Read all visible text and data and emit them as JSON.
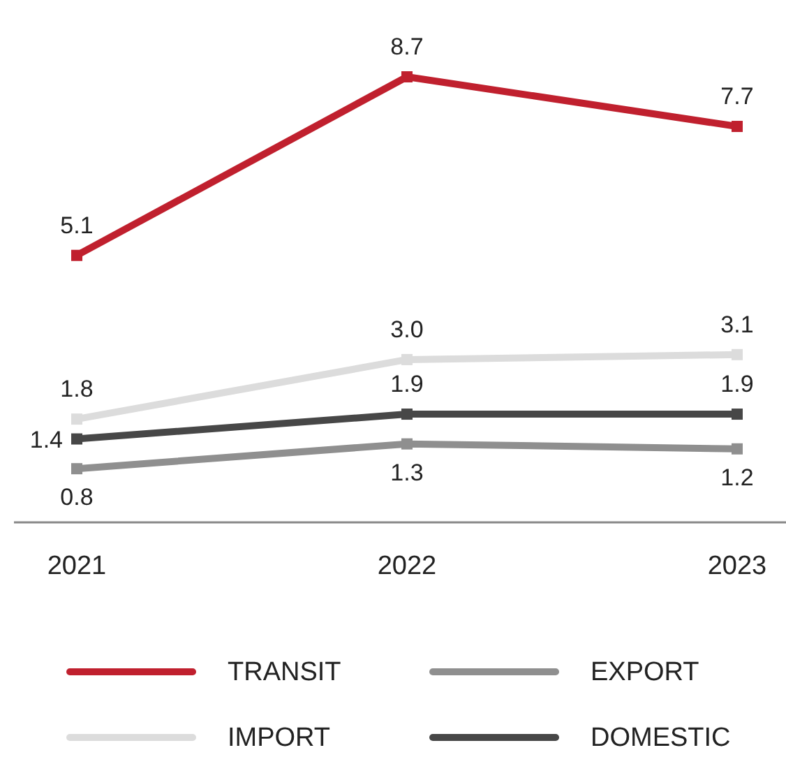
{
  "chart_data": {
    "type": "line",
    "categories": [
      "2021",
      "2022",
      "2023"
    ],
    "marker": "square",
    "legend": "bottom",
    "series": [
      {
        "name": "TRANSIT",
        "color": "#c0202e",
        "values": [
          5.1,
          8.7,
          7.7
        ],
        "value_labels": [
          "5.1",
          "8.7",
          "7.7"
        ]
      },
      {
        "name": "EXPORT",
        "color": "#8f8f8f",
        "values": [
          0.8,
          1.3,
          1.2
        ],
        "value_labels": [
          "0.8",
          "1.3",
          "1.2"
        ]
      },
      {
        "name": "IMPORT",
        "color": "#dcdcdc",
        "values": [
          1.8,
          3.0,
          3.1
        ],
        "value_labels": [
          "1.8",
          "3.0",
          "3.1"
        ]
      },
      {
        "name": "DOMESTIC",
        "color": "#474747",
        "values": [
          1.4,
          1.9,
          1.9
        ],
        "value_labels": [
          "1.4",
          "1.9",
          "1.9"
        ]
      }
    ]
  }
}
